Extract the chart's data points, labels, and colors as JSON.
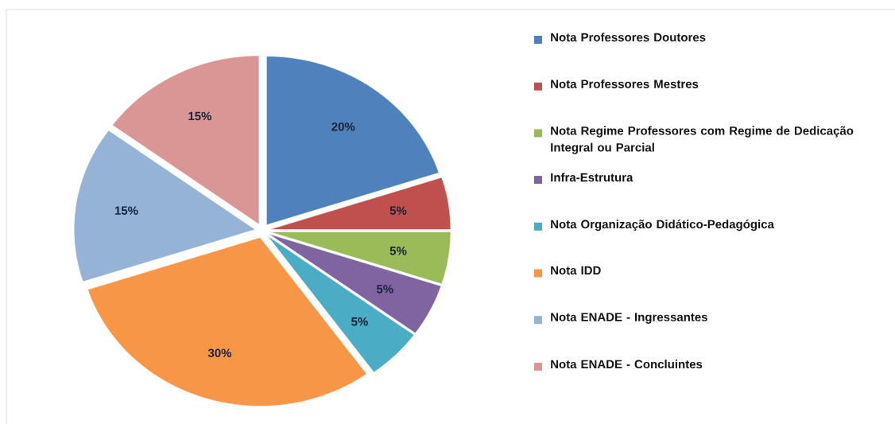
{
  "chart_data": {
    "type": "pie",
    "categories": [
      "Nota Professores Doutores",
      "Nota Professores Mestres",
      "Nota Regime Professores com Regime de Dedicação Integral ou Parcial",
      "Infra-Estrutura",
      "Nota Organização Didático-Pedagógica",
      "Nota IDD",
      "Nota ENADE - Ingressantes",
      "Nota ENADE - Concluintes"
    ],
    "values": [
      20,
      5,
      5,
      5,
      5,
      30,
      15,
      15
    ],
    "value_labels": [
      "20%",
      "5%",
      "5%",
      "5%",
      "5%",
      "30%",
      "15%",
      "15%"
    ],
    "colors": [
      "#4f81bd",
      "#c0504d",
      "#9bbb59",
      "#8064a2",
      "#4bacc6",
      "#f79646",
      "#95b3d7",
      "#d99694"
    ],
    "legend": "right"
  }
}
